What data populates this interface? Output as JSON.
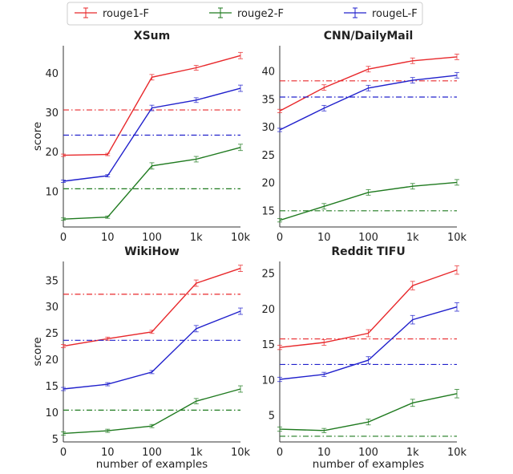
{
  "legend": {
    "entries": [
      {
        "label": "rouge1-F",
        "color": "#e8282b"
      },
      {
        "label": "rouge2-F",
        "color": "#1f7a1f"
      },
      {
        "label": "rougeL-F",
        "color": "#2020cc"
      }
    ]
  },
  "chart_data": [
    {
      "type": "line",
      "title": "XSum",
      "xlabel": "",
      "ylabel": "score",
      "x": [
        "0",
        "10",
        "100",
        "1k",
        "10k"
      ],
      "ylim": [
        1,
        47
      ],
      "yticks": [
        10,
        20,
        30,
        40
      ],
      "series": [
        {
          "name": "rouge1-F",
          "color": "#e8282b",
          "values": [
            19.2,
            19.4,
            39.0,
            41.4,
            44.5
          ],
          "errors": [
            0.3,
            0.3,
            0.7,
            0.6,
            0.8
          ],
          "baseline": 30.7
        },
        {
          "name": "rouge2-F",
          "color": "#1f7a1f",
          "values": [
            3.0,
            3.5,
            16.5,
            18.2,
            21.2
          ],
          "errors": [
            0.3,
            0.3,
            0.8,
            0.7,
            0.8
          ],
          "baseline": 10.7
        },
        {
          "name": "rougeL-F",
          "color": "#2020cc",
          "values": [
            12.6,
            14.0,
            31.2,
            33.2,
            36.2
          ],
          "errors": [
            0.3,
            0.3,
            0.7,
            0.6,
            0.8
          ],
          "baseline": 24.3
        }
      ]
    },
    {
      "type": "line",
      "title": "CNN/DailyMail",
      "xlabel": "",
      "ylabel": "",
      "x": [
        "0",
        "10",
        "100",
        "1k",
        "10k"
      ],
      "ylim": [
        12.1,
        44.6
      ],
      "yticks": [
        15,
        20,
        25,
        30,
        35,
        40
      ],
      "series": [
        {
          "name": "rouge1-F",
          "color": "#e8282b",
          "values": [
            32.9,
            37.1,
            40.4,
            41.9,
            42.6
          ],
          "errors": [
            0.3,
            0.5,
            0.5,
            0.5,
            0.5
          ],
          "baseline": 38.3
        },
        {
          "name": "rouge2-F",
          "color": "#1f7a1f",
          "values": [
            13.3,
            15.8,
            18.3,
            19.4,
            20.1
          ],
          "errors": [
            0.3,
            0.5,
            0.5,
            0.5,
            0.5
          ],
          "baseline": 15.0
        },
        {
          "name": "rougeL-F",
          "color": "#2020cc",
          "values": [
            29.5,
            33.4,
            37.0,
            38.4,
            39.3
          ],
          "errors": [
            0.3,
            0.5,
            0.5,
            0.5,
            0.5
          ],
          "baseline": 35.4
        }
      ]
    },
    {
      "type": "line",
      "title": "WikiHow",
      "xlabel": "number of examples",
      "ylabel": "score",
      "x": [
        "0",
        "10",
        "100",
        "1k",
        "10k"
      ],
      "ylim": [
        4.5,
        38.6
      ],
      "yticks": [
        5,
        10,
        15,
        20,
        25,
        30,
        35
      ],
      "series": [
        {
          "name": "rouge1-F",
          "color": "#e8282b",
          "values": [
            22.6,
            24.0,
            25.3,
            34.5,
            37.3
          ],
          "errors": [
            0.3,
            0.3,
            0.3,
            0.6,
            0.6
          ],
          "baseline": 32.4
        },
        {
          "name": "rouge2-F",
          "color": "#1f7a1f",
          "values": [
            6.1,
            6.6,
            7.5,
            12.2,
            14.5
          ],
          "errors": [
            0.3,
            0.3,
            0.3,
            0.5,
            0.6
          ],
          "baseline": 10.5
        },
        {
          "name": "rougeL-F",
          "color": "#2020cc",
          "values": [
            14.5,
            15.4,
            17.7,
            25.9,
            29.2
          ],
          "errors": [
            0.3,
            0.3,
            0.3,
            0.6,
            0.6
          ],
          "baseline": 23.7
        }
      ]
    },
    {
      "type": "line",
      "title": "Reddit TIFU",
      "xlabel": "number of examples",
      "ylabel": "",
      "x": [
        "0",
        "10",
        "100",
        "1k",
        "10k"
      ],
      "ylim": [
        1.3,
        26.7
      ],
      "yticks": [
        5,
        10,
        15,
        20,
        25
      ],
      "series": [
        {
          "name": "rouge1-F",
          "color": "#e8282b",
          "values": [
            14.6,
            15.3,
            16.6,
            23.3,
            25.5
          ],
          "errors": [
            0.3,
            0.4,
            0.5,
            0.6,
            0.6
          ],
          "baseline": 15.8
        },
        {
          "name": "rouge2-F",
          "color": "#1f7a1f",
          "values": [
            3.1,
            2.9,
            4.1,
            6.8,
            8.1
          ],
          "errors": [
            0.3,
            0.3,
            0.4,
            0.5,
            0.6
          ],
          "baseline": 2.1
        },
        {
          "name": "rougeL-F",
          "color": "#2020cc",
          "values": [
            10.1,
            10.8,
            12.8,
            18.5,
            20.3
          ],
          "errors": [
            0.3,
            0.3,
            0.5,
            0.6,
            0.6
          ],
          "baseline": 12.2
        }
      ]
    }
  ]
}
